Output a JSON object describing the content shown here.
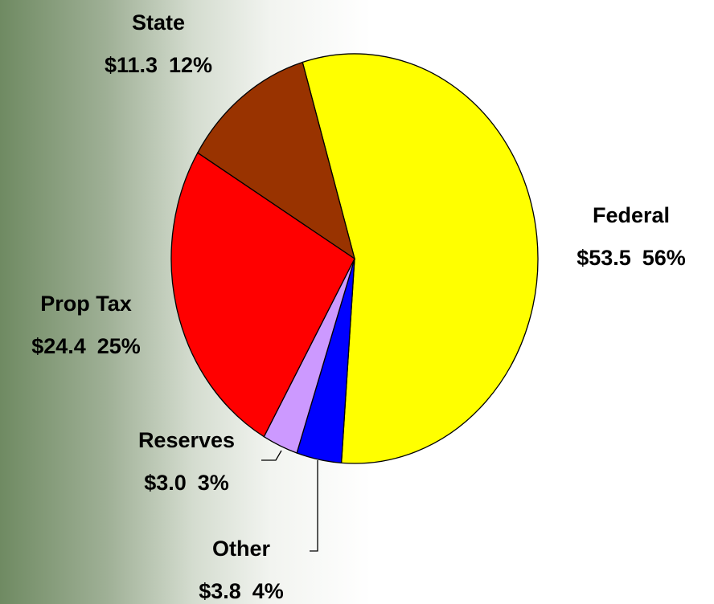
{
  "chart_data": {
    "type": "pie",
    "categories": [
      "Federal",
      "Other",
      "Reserves",
      "Prop Tax",
      "State"
    ],
    "values": [
      53.5,
      3.8,
      3.0,
      24.4,
      11.3
    ],
    "value_labels": [
      "$53.5",
      "$3.8",
      "$3.0",
      "$24.4",
      "$11.3"
    ],
    "percentages": [
      56,
      4,
      3,
      25,
      12
    ],
    "percentage_labels": [
      "56%",
      "4%",
      "3%",
      "25%",
      "12%"
    ],
    "colors": [
      "#ffff00",
      "#0000ff",
      "#cc99ff",
      "#ff0000",
      "#993300"
    ]
  }
}
